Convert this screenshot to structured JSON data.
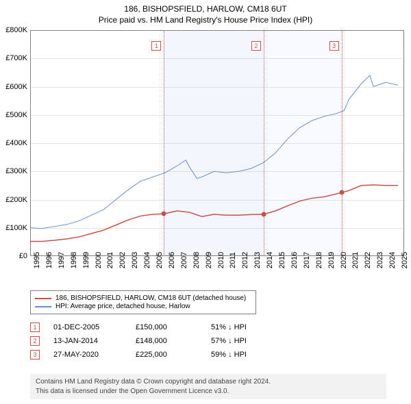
{
  "header": {
    "title": "186, BISHOPSFIELD, HARLOW, CM18 6UT",
    "subtitle": "Price paid vs. HM Land Registry's House Price Index (HPI)"
  },
  "chart": {
    "type": "line",
    "background_color": "#ffffff",
    "grid_color": "#e4e4e4",
    "border_color": "#808080",
    "ylim": [
      0,
      800000
    ],
    "yticks": [
      0,
      100000,
      200000,
      300000,
      400000,
      500000,
      600000,
      700000,
      800000
    ],
    "ytick_labels": [
      "£0",
      "£100K",
      "£200K",
      "£300K",
      "£400K",
      "£500K",
      "£600K",
      "£700K",
      "£800K"
    ],
    "xlim": [
      1995,
      2025.5
    ],
    "xticks": [
      1995,
      1996,
      1997,
      1998,
      1999,
      2000,
      2001,
      2002,
      2003,
      2004,
      2005,
      2006,
      2007,
      2008,
      2009,
      2010,
      2011,
      2012,
      2013,
      2014,
      2015,
      2016,
      2017,
      2018,
      2019,
      2020,
      2021,
      2022,
      2023,
      2024,
      2025
    ],
    "shaded_ranges": [
      {
        "from": 2005.92,
        "to": 2014.04,
        "color": "rgba(100,140,230,0.08)"
      },
      {
        "from": 2014.04,
        "to": 2020.4,
        "color": "rgba(100,140,230,0.04)"
      }
    ],
    "event_lines": [
      {
        "x": 2005.92,
        "label": "1"
      },
      {
        "x": 2014.04,
        "label": "2"
      },
      {
        "x": 2020.4,
        "label": "3"
      }
    ],
    "series": [
      {
        "name": "subject_property",
        "label": "186, BISHOPSFIELD, HARLOW, CM18 6UT (detached house)",
        "color": "#c8504b",
        "line_width": 1.5,
        "points": [
          [
            1995,
            52000
          ],
          [
            1996,
            52000
          ],
          [
            1997,
            56000
          ],
          [
            1998,
            61000
          ],
          [
            1999,
            68000
          ],
          [
            2000,
            80000
          ],
          [
            2001,
            92000
          ],
          [
            2002,
            110000
          ],
          [
            2003,
            128000
          ],
          [
            2004,
            142000
          ],
          [
            2005,
            148000
          ],
          [
            2005.92,
            150000
          ],
          [
            2007,
            160000
          ],
          [
            2008,
            155000
          ],
          [
            2009,
            140000
          ],
          [
            2010,
            148000
          ],
          [
            2011,
            145000
          ],
          [
            2012,
            145000
          ],
          [
            2013,
            147000
          ],
          [
            2014.04,
            148000
          ],
          [
            2015,
            160000
          ],
          [
            2016,
            178000
          ],
          [
            2017,
            195000
          ],
          [
            2018,
            205000
          ],
          [
            2019,
            210000
          ],
          [
            2020.4,
            225000
          ],
          [
            2021,
            232000
          ],
          [
            2022,
            250000
          ],
          [
            2023,
            252000
          ],
          [
            2024,
            250000
          ],
          [
            2025,
            250000
          ]
        ],
        "markers": [
          {
            "x": 2005.92,
            "y": 150000
          },
          {
            "x": 2014.04,
            "y": 148000
          },
          {
            "x": 2020.4,
            "y": 225000
          }
        ]
      },
      {
        "name": "hpi",
        "label": "HPI: Average price, detached house, Harlow",
        "color": "#6a8bd4",
        "line_width": 1,
        "points": [
          [
            1995,
            100000
          ],
          [
            1996,
            98000
          ],
          [
            1997,
            105000
          ],
          [
            1998,
            112000
          ],
          [
            1999,
            125000
          ],
          [
            2000,
            145000
          ],
          [
            2001,
            165000
          ],
          [
            2002,
            200000
          ],
          [
            2003,
            235000
          ],
          [
            2004,
            265000
          ],
          [
            2005,
            280000
          ],
          [
            2006,
            295000
          ],
          [
            2007,
            320000
          ],
          [
            2007.7,
            340000
          ],
          [
            2008,
            315000
          ],
          [
            2008.6,
            275000
          ],
          [
            2009,
            280000
          ],
          [
            2010,
            300000
          ],
          [
            2011,
            295000
          ],
          [
            2012,
            300000
          ],
          [
            2013,
            310000
          ],
          [
            2014,
            330000
          ],
          [
            2015,
            365000
          ],
          [
            2016,
            415000
          ],
          [
            2017,
            455000
          ],
          [
            2018,
            480000
          ],
          [
            2019,
            495000
          ],
          [
            2020,
            505000
          ],
          [
            2020.6,
            515000
          ],
          [
            2021,
            555000
          ],
          [
            2022,
            610000
          ],
          [
            2022.7,
            640000
          ],
          [
            2023,
            600000
          ],
          [
            2024,
            615000
          ],
          [
            2025,
            605000
          ]
        ]
      }
    ]
  },
  "legend": {
    "items": [
      {
        "color": "#c8504b",
        "label": "186, BISHOPSFIELD, HARLOW, CM18 6UT (detached house)"
      },
      {
        "color": "#6a8bd4",
        "label": "HPI: Average price, detached house, Harlow"
      }
    ]
  },
  "sales": [
    {
      "badge": "1",
      "date": "01-DEC-2005",
      "price": "£150,000",
      "hpi": "51% ↓ HPI"
    },
    {
      "badge": "2",
      "date": "13-JAN-2014",
      "price": "£148,000",
      "hpi": "57% ↓ HPI"
    },
    {
      "badge": "3",
      "date": "27-MAY-2020",
      "price": "£225,000",
      "hpi": "59% ↓ HPI"
    }
  ],
  "attribution": {
    "line1": "Contains HM Land Registry data © Crown copyright and database right 2024.",
    "line2": "This data is licensed under the Open Government Licence v3.0."
  }
}
